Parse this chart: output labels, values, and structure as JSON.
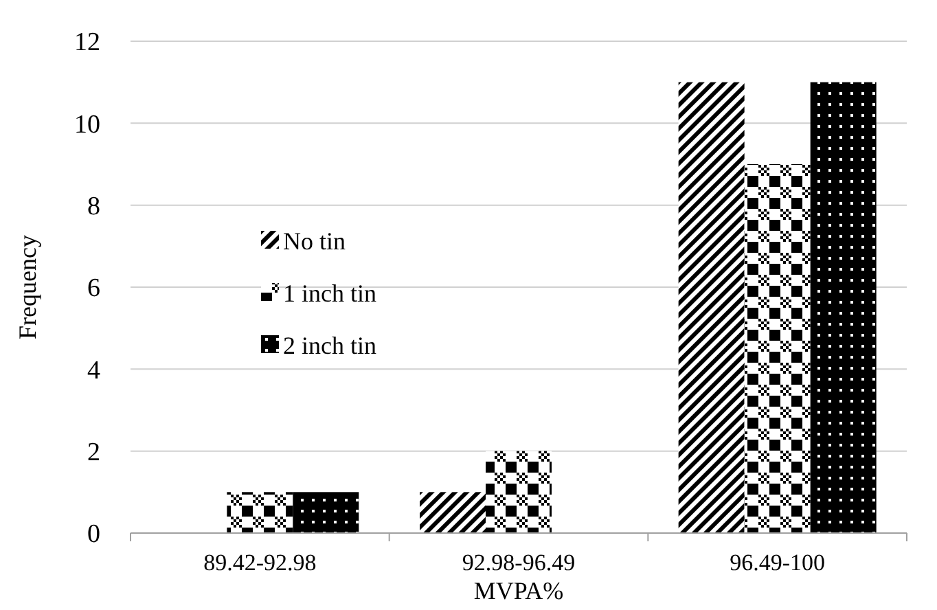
{
  "chart_data": {
    "type": "bar",
    "xlabel": "MVPA%",
    "ylabel": "Frequency",
    "categories": [
      "89.42-92.98",
      "92.98-96.49",
      "96.49-100"
    ],
    "series": [
      {
        "name": "No tin",
        "color": "#000000",
        "values": [
          0,
          1,
          11
        ]
      },
      {
        "name": "1 inch tin",
        "color": "#000000",
        "values": [
          1,
          2,
          9
        ]
      },
      {
        "name": "2 inch tin",
        "color": "#000000",
        "values": [
          1,
          0,
          11
        ]
      }
    ],
    "ylim": [
      0,
      12
    ],
    "yticks": [
      0,
      2,
      4,
      6,
      8,
      10,
      12
    ],
    "grid": "y",
    "legend": "left"
  }
}
